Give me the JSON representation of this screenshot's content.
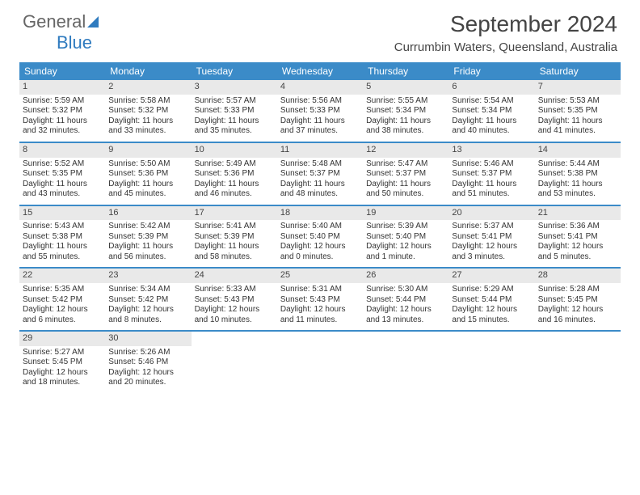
{
  "logo": {
    "text1": "General",
    "text2": "Blue"
  },
  "title": "September 2024",
  "location": "Currumbin Waters, Queensland, Australia",
  "colors": {
    "header_bg": "#3b8bc8",
    "daynum_bg": "#e9e9e9",
    "text": "#333333",
    "logo_blue": "#2f7bbf"
  },
  "weekdays": [
    "Sunday",
    "Monday",
    "Tuesday",
    "Wednesday",
    "Thursday",
    "Friday",
    "Saturday"
  ],
  "weeks": [
    [
      {
        "day": "1",
        "sunrise": "Sunrise: 5:59 AM",
        "sunset": "Sunset: 5:32 PM",
        "d1": "Daylight: 11 hours",
        "d2": "and 32 minutes."
      },
      {
        "day": "2",
        "sunrise": "Sunrise: 5:58 AM",
        "sunset": "Sunset: 5:32 PM",
        "d1": "Daylight: 11 hours",
        "d2": "and 33 minutes."
      },
      {
        "day": "3",
        "sunrise": "Sunrise: 5:57 AM",
        "sunset": "Sunset: 5:33 PM",
        "d1": "Daylight: 11 hours",
        "d2": "and 35 minutes."
      },
      {
        "day": "4",
        "sunrise": "Sunrise: 5:56 AM",
        "sunset": "Sunset: 5:33 PM",
        "d1": "Daylight: 11 hours",
        "d2": "and 37 minutes."
      },
      {
        "day": "5",
        "sunrise": "Sunrise: 5:55 AM",
        "sunset": "Sunset: 5:34 PM",
        "d1": "Daylight: 11 hours",
        "d2": "and 38 minutes."
      },
      {
        "day": "6",
        "sunrise": "Sunrise: 5:54 AM",
        "sunset": "Sunset: 5:34 PM",
        "d1": "Daylight: 11 hours",
        "d2": "and 40 minutes."
      },
      {
        "day": "7",
        "sunrise": "Sunrise: 5:53 AM",
        "sunset": "Sunset: 5:35 PM",
        "d1": "Daylight: 11 hours",
        "d2": "and 41 minutes."
      }
    ],
    [
      {
        "day": "8",
        "sunrise": "Sunrise: 5:52 AM",
        "sunset": "Sunset: 5:35 PM",
        "d1": "Daylight: 11 hours",
        "d2": "and 43 minutes."
      },
      {
        "day": "9",
        "sunrise": "Sunrise: 5:50 AM",
        "sunset": "Sunset: 5:36 PM",
        "d1": "Daylight: 11 hours",
        "d2": "and 45 minutes."
      },
      {
        "day": "10",
        "sunrise": "Sunrise: 5:49 AM",
        "sunset": "Sunset: 5:36 PM",
        "d1": "Daylight: 11 hours",
        "d2": "and 46 minutes."
      },
      {
        "day": "11",
        "sunrise": "Sunrise: 5:48 AM",
        "sunset": "Sunset: 5:37 PM",
        "d1": "Daylight: 11 hours",
        "d2": "and 48 minutes."
      },
      {
        "day": "12",
        "sunrise": "Sunrise: 5:47 AM",
        "sunset": "Sunset: 5:37 PM",
        "d1": "Daylight: 11 hours",
        "d2": "and 50 minutes."
      },
      {
        "day": "13",
        "sunrise": "Sunrise: 5:46 AM",
        "sunset": "Sunset: 5:37 PM",
        "d1": "Daylight: 11 hours",
        "d2": "and 51 minutes."
      },
      {
        "day": "14",
        "sunrise": "Sunrise: 5:44 AM",
        "sunset": "Sunset: 5:38 PM",
        "d1": "Daylight: 11 hours",
        "d2": "and 53 minutes."
      }
    ],
    [
      {
        "day": "15",
        "sunrise": "Sunrise: 5:43 AM",
        "sunset": "Sunset: 5:38 PM",
        "d1": "Daylight: 11 hours",
        "d2": "and 55 minutes."
      },
      {
        "day": "16",
        "sunrise": "Sunrise: 5:42 AM",
        "sunset": "Sunset: 5:39 PM",
        "d1": "Daylight: 11 hours",
        "d2": "and 56 minutes."
      },
      {
        "day": "17",
        "sunrise": "Sunrise: 5:41 AM",
        "sunset": "Sunset: 5:39 PM",
        "d1": "Daylight: 11 hours",
        "d2": "and 58 minutes."
      },
      {
        "day": "18",
        "sunrise": "Sunrise: 5:40 AM",
        "sunset": "Sunset: 5:40 PM",
        "d1": "Daylight: 12 hours",
        "d2": "and 0 minutes."
      },
      {
        "day": "19",
        "sunrise": "Sunrise: 5:39 AM",
        "sunset": "Sunset: 5:40 PM",
        "d1": "Daylight: 12 hours",
        "d2": "and 1 minute."
      },
      {
        "day": "20",
        "sunrise": "Sunrise: 5:37 AM",
        "sunset": "Sunset: 5:41 PM",
        "d1": "Daylight: 12 hours",
        "d2": "and 3 minutes."
      },
      {
        "day": "21",
        "sunrise": "Sunrise: 5:36 AM",
        "sunset": "Sunset: 5:41 PM",
        "d1": "Daylight: 12 hours",
        "d2": "and 5 minutes."
      }
    ],
    [
      {
        "day": "22",
        "sunrise": "Sunrise: 5:35 AM",
        "sunset": "Sunset: 5:42 PM",
        "d1": "Daylight: 12 hours",
        "d2": "and 6 minutes."
      },
      {
        "day": "23",
        "sunrise": "Sunrise: 5:34 AM",
        "sunset": "Sunset: 5:42 PM",
        "d1": "Daylight: 12 hours",
        "d2": "and 8 minutes."
      },
      {
        "day": "24",
        "sunrise": "Sunrise: 5:33 AM",
        "sunset": "Sunset: 5:43 PM",
        "d1": "Daylight: 12 hours",
        "d2": "and 10 minutes."
      },
      {
        "day": "25",
        "sunrise": "Sunrise: 5:31 AM",
        "sunset": "Sunset: 5:43 PM",
        "d1": "Daylight: 12 hours",
        "d2": "and 11 minutes."
      },
      {
        "day": "26",
        "sunrise": "Sunrise: 5:30 AM",
        "sunset": "Sunset: 5:44 PM",
        "d1": "Daylight: 12 hours",
        "d2": "and 13 minutes."
      },
      {
        "day": "27",
        "sunrise": "Sunrise: 5:29 AM",
        "sunset": "Sunset: 5:44 PM",
        "d1": "Daylight: 12 hours",
        "d2": "and 15 minutes."
      },
      {
        "day": "28",
        "sunrise": "Sunrise: 5:28 AM",
        "sunset": "Sunset: 5:45 PM",
        "d1": "Daylight: 12 hours",
        "d2": "and 16 minutes."
      }
    ],
    [
      {
        "day": "29",
        "sunrise": "Sunrise: 5:27 AM",
        "sunset": "Sunset: 5:45 PM",
        "d1": "Daylight: 12 hours",
        "d2": "and 18 minutes."
      },
      {
        "day": "30",
        "sunrise": "Sunrise: 5:26 AM",
        "sunset": "Sunset: 5:46 PM",
        "d1": "Daylight: 12 hours",
        "d2": "and 20 minutes."
      },
      {
        "empty": true
      },
      {
        "empty": true
      },
      {
        "empty": true
      },
      {
        "empty": true
      },
      {
        "empty": true
      }
    ]
  ]
}
